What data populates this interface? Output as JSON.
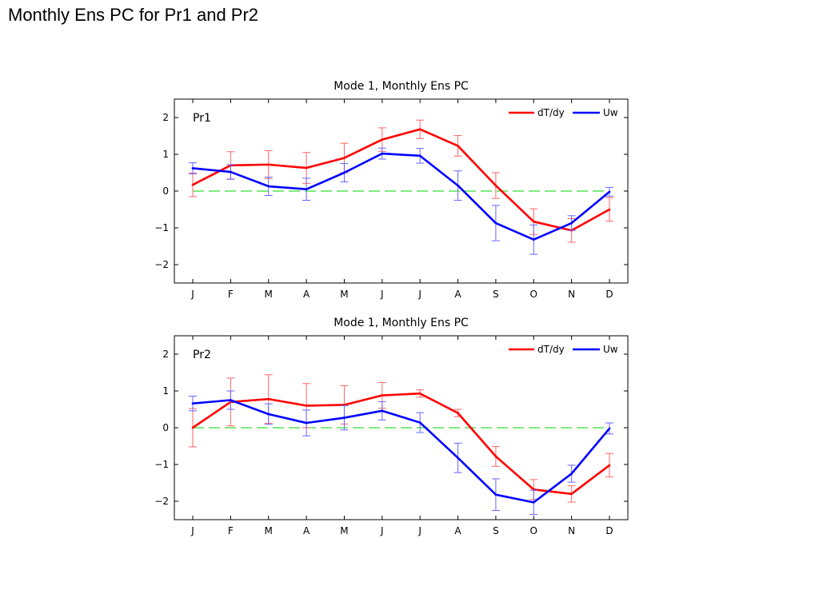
{
  "slide_title": "Monthly Ens PC for Pr1 and Pr2",
  "colors": {
    "dTdy": "#ff0000",
    "Uw": "#0000ff",
    "zero_line": "#33dd33",
    "err_dTdy": "#ff6666",
    "err_Uw": "#6666ff"
  },
  "chart_data": [
    {
      "type": "line",
      "title": "Mode 1, Monthly Ens PC",
      "panel_label": "Pr1",
      "categories": [
        "J",
        "F",
        "M",
        "A",
        "M",
        "J",
        "J",
        "A",
        "S",
        "O",
        "N",
        "D"
      ],
      "ylim": [
        -2.5,
        2.5
      ],
      "yticks": [
        -2,
        -1,
        0,
        1,
        2
      ],
      "ytick_labels": [
        "−2",
        "−1",
        "0",
        "1",
        "2"
      ],
      "legend": "top-right",
      "series": [
        {
          "name": "dT/dy",
          "values": [
            0.17,
            0.7,
            0.72,
            0.63,
            0.9,
            1.4,
            1.68,
            1.23,
            0.15,
            -0.83,
            -1.07,
            -0.5
          ],
          "err": [
            0.32,
            0.37,
            0.38,
            0.42,
            0.4,
            0.32,
            0.25,
            0.28,
            0.35,
            0.35,
            0.32,
            0.32
          ]
        },
        {
          "name": "Uw",
          "values": [
            0.62,
            0.52,
            0.13,
            0.05,
            0.5,
            1.02,
            0.96,
            0.15,
            -0.87,
            -1.32,
            -0.87,
            -0.02
          ],
          "err": [
            0.15,
            0.2,
            0.25,
            0.3,
            0.25,
            0.15,
            0.2,
            0.4,
            0.48,
            0.4,
            0.2,
            0.12
          ]
        }
      ]
    },
    {
      "type": "line",
      "title": "Mode 1, Monthly Ens PC",
      "panel_label": "Pr2",
      "categories": [
        "J",
        "F",
        "M",
        "A",
        "M",
        "J",
        "J",
        "A",
        "S",
        "O",
        "N",
        "D"
      ],
      "ylim": [
        -2.5,
        2.5
      ],
      "yticks": [
        -2,
        -1,
        0,
        1,
        2
      ],
      "ytick_labels": [
        "−2",
        "−1",
        "0",
        "1",
        "2"
      ],
      "legend": "top-right",
      "series": [
        {
          "name": "dT/dy",
          "values": [
            0.0,
            0.7,
            0.78,
            0.6,
            0.62,
            0.88,
            0.93,
            0.4,
            -0.78,
            -1.68,
            -1.8,
            -1.02
          ],
          "err": [
            0.52,
            0.65,
            0.66,
            0.6,
            0.52,
            0.35,
            0.1,
            0.1,
            0.27,
            0.27,
            0.22,
            0.32
          ]
        },
        {
          "name": "Uw",
          "values": [
            0.66,
            0.75,
            0.37,
            0.13,
            0.27,
            0.46,
            0.14,
            -0.82,
            -1.82,
            -2.03,
            -1.25,
            -0.02
          ],
          "err": [
            0.2,
            0.25,
            0.28,
            0.35,
            0.33,
            0.25,
            0.27,
            0.4,
            0.43,
            0.33,
            0.23,
            0.15
          ]
        }
      ]
    }
  ]
}
